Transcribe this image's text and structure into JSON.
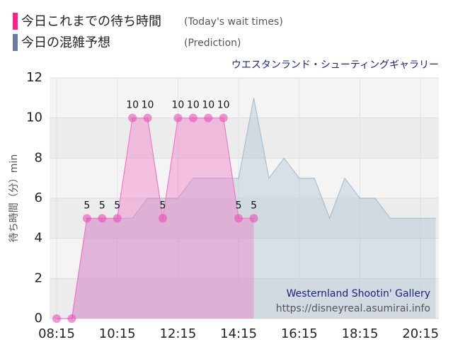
{
  "chart_data": {
    "type": "area",
    "subtitle": "ウエスタンランド・シューティングギャラリー",
    "y_label": "待ち時間（分）min",
    "watermark": [
      "Westernland Shootin' Gallery",
      "https://disneyreal.asumirai.info"
    ],
    "ylim": [
      0,
      12
    ],
    "yticks": [
      0,
      2,
      4,
      6,
      8,
      10,
      12
    ],
    "grid": true,
    "xticks": [
      "08:15",
      "10:15",
      "12:15",
      "14:15",
      "16:15",
      "18:15",
      "20:15"
    ],
    "series": [
      {
        "name": "今日の混雑予想",
        "legend_note": "(Prediction)",
        "color": "#6b7aa1",
        "x": [
          "08:45",
          "09:15",
          "09:45",
          "10:15",
          "10:45",
          "11:15",
          "11:45",
          "12:15",
          "12:45",
          "13:15",
          "13:45",
          "14:15",
          "14:45",
          "15:15",
          "15:45",
          "16:15",
          "16:45",
          "17:15",
          "17:45",
          "18:15",
          "18:45",
          "19:15",
          "19:45",
          "20:15",
          "20:45"
        ],
        "values": [
          0,
          5,
          5,
          5,
          5,
          6,
          6,
          6,
          7,
          7,
          7,
          7,
          11,
          7,
          8,
          7,
          7,
          5,
          7,
          6,
          6,
          5,
          5,
          5,
          5
        ]
      },
      {
        "name": "今日これまでの待ち時間",
        "legend_note": "(Today's wait times)",
        "color": "#ff1f8e",
        "x": [
          "08:15",
          "08:45",
          "09:15",
          "09:45",
          "10:15",
          "10:45",
          "11:15",
          "11:45",
          "12:15",
          "12:45",
          "13:15",
          "13:45",
          "14:15",
          "14:45"
        ],
        "values": [
          0,
          0,
          5,
          5,
          5,
          10,
          10,
          5,
          10,
          10,
          10,
          10,
          5,
          5
        ],
        "value_labels": [
          null,
          null,
          "5",
          "5",
          "5",
          "10",
          "10",
          "5",
          "10",
          "10",
          "10",
          "10",
          "5",
          "5"
        ]
      }
    ]
  }
}
